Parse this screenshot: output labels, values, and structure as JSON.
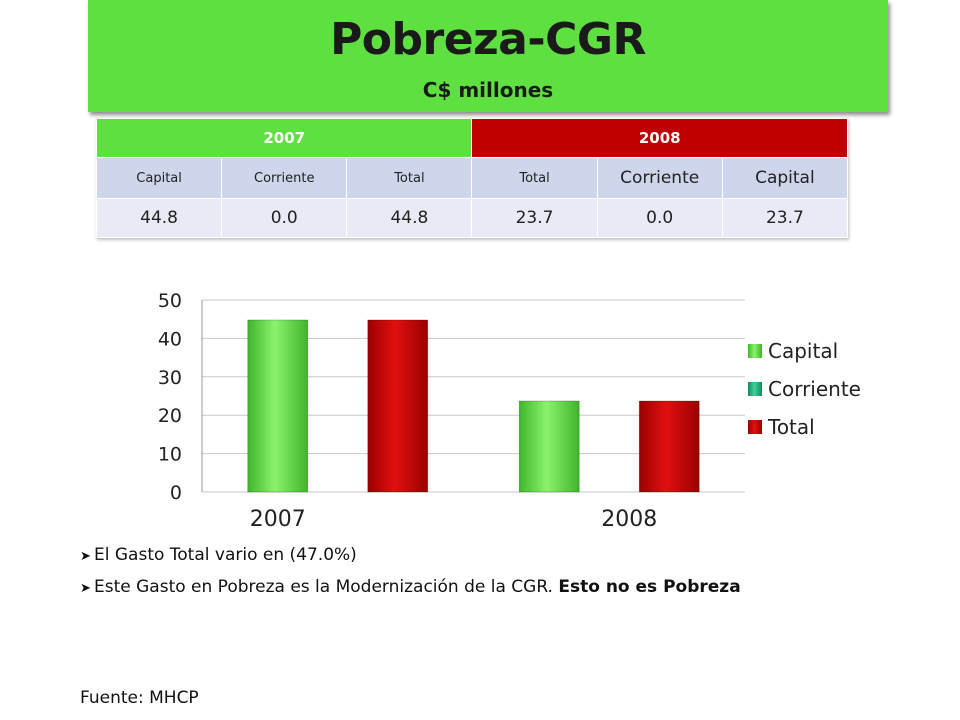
{
  "header": {
    "title": "Pobreza-CGR",
    "subtitle": "C$ millones"
  },
  "table": {
    "years": [
      "2007",
      "2008"
    ],
    "columns": [
      "Capital",
      "Corriente",
      "Total",
      "Total",
      "Corriente",
      "Capital"
    ],
    "values": [
      "44.8",
      "0.0",
      "44.8",
      "23.7",
      "0.0",
      "23.7"
    ]
  },
  "bullets": [
    {
      "text": "El Gasto Total vario en (47.0%)",
      "bold": ""
    },
    {
      "text": "Este Gasto en Pobreza es la Modernización de la CGR. ",
      "bold": "Esto no es Pobreza"
    }
  ],
  "source": "Fuente: MHCP",
  "icons": {
    "bullet": "arrow-bullet-icon"
  },
  "colors": {
    "banner_green": "#5fe041",
    "year_2008_red": "#c00000",
    "capital": "#5fe041",
    "corriente": "#1fa97a",
    "total": "#c00000"
  },
  "chart_data": {
    "type": "bar",
    "categories": [
      "2007",
      "2008"
    ],
    "series": [
      {
        "name": "Capital",
        "values": [
          44.8,
          23.7
        ],
        "color": "#5fe041"
      },
      {
        "name": "Corriente",
        "values": [
          0,
          0
        ],
        "color": "#1fa97a"
      },
      {
        "name": "Total",
        "values": [
          44.8,
          23.7
        ],
        "color": "#c00000"
      }
    ],
    "yticks": [
      "0",
      "10",
      "20",
      "30",
      "40",
      "50"
    ],
    "ylim": [
      0,
      50
    ],
    "grid": true,
    "legend": "right"
  }
}
